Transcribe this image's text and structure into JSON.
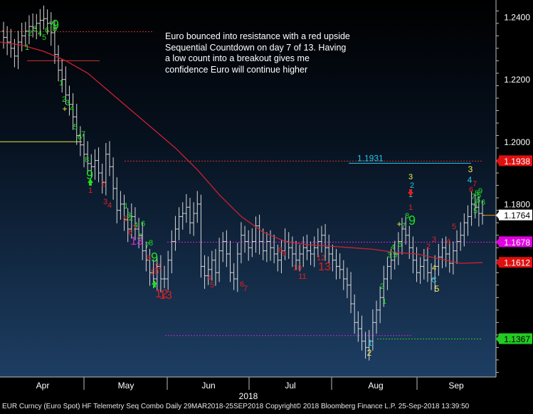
{
  "chart_data": {
    "type": "ohlc",
    "instrument": "EUR Curncy (Euro Spot)",
    "period": "Daily 29MAR2018-25SEP2018",
    "y_axis": {
      "ylim": [
        1.1245,
        1.2455
      ],
      "ticks": [
        1.24,
        1.22,
        1.2,
        1.18
      ]
    },
    "x_axis": {
      "months": [
        "Apr",
        "May",
        "Jun",
        "Jul",
        "Aug",
        "Sep"
      ],
      "year": "2018"
    },
    "close_series": [
      1.2335,
      1.232,
      1.23,
      1.2275,
      1.232,
      1.234,
      1.2355,
      1.237,
      1.2365,
      1.238,
      1.239,
      1.2395,
      1.238,
      1.235,
      1.228,
      1.223,
      1.22,
      1.215,
      1.212,
      1.208,
      1.202,
      1.199,
      1.196,
      1.193,
      1.192,
      1.194,
      1.19,
      1.187,
      1.196,
      1.192,
      1.185,
      1.178,
      1.18,
      1.175,
      1.172,
      1.176,
      1.172,
      1.17,
      1.165,
      1.162,
      1.158,
      1.156,
      1.16,
      1.156,
      1.156,
      1.162,
      1.168,
      1.172,
      1.176,
      1.177,
      1.179,
      1.174,
      1.177,
      1.18,
      1.16,
      1.157,
      1.159,
      1.162,
      1.158,
      1.165,
      1.168,
      1.164,
      1.158,
      1.156,
      1.164,
      1.17,
      1.168,
      1.166,
      1.168,
      1.173,
      1.168,
      1.165,
      1.168,
      1.166,
      1.164,
      1.162,
      1.165,
      1.168,
      1.166,
      1.164,
      1.162,
      1.164,
      1.166,
      1.165,
      1.164,
      1.166,
      1.168,
      1.17,
      1.166,
      1.164,
      1.162,
      1.16,
      1.159,
      1.156,
      1.154,
      1.148,
      1.142,
      1.14,
      1.136,
      1.134,
      1.136,
      1.142,
      1.146,
      1.15,
      1.156,
      1.16,
      1.162,
      1.164,
      1.168,
      1.172,
      1.17,
      1.166,
      1.162,
      1.158,
      1.16,
      1.162,
      1.158,
      1.156,
      1.16,
      1.163,
      1.166,
      1.164,
      1.161,
      1.165,
      1.168,
      1.17,
      1.174,
      1.176,
      1.18,
      1.179,
      1.177,
      1.1764
    ],
    "moving_average": [
      1.232,
      1.231,
      1.229,
      1.226,
      1.222,
      1.216,
      1.21,
      1.204,
      1.198,
      1.191,
      1.183,
      1.176,
      1.171,
      1.168,
      1.167,
      1.1665,
      1.166,
      1.1655,
      1.1645,
      1.164,
      1.1625,
      1.161,
      1.1612
    ],
    "price_labels": [
      {
        "text": "1.2400",
        "value": 1.24,
        "style": "tick"
      },
      {
        "text": "1.2200",
        "value": 1.22,
        "style": "tick"
      },
      {
        "text": "1.2000",
        "value": 1.2,
        "style": "tick"
      },
      {
        "text": "1.1938",
        "value": 1.1938,
        "style": "red"
      },
      {
        "text": "1.1800",
        "value": 1.18,
        "style": "tick"
      },
      {
        "text": "1.1764",
        "value": 1.1764,
        "style": "white"
      },
      {
        "text": "1.1678",
        "value": 1.1678,
        "style": "magenta"
      },
      {
        "text": "1.1612",
        "value": 1.1612,
        "style": "red"
      },
      {
        "text": "1.1367",
        "value": 1.1367,
        "style": "green"
      }
    ],
    "level_label": {
      "text": "1.1931",
      "value": 1.1931,
      "color": "#21c7e6"
    },
    "annotation": "Euro bounced into resistance with a red upside Sequential Countdown on day 7 of 13.  Having a low count into a breakout gives me confidence Euro will continue higher",
    "setup_counts": [
      "2",
      "3",
      "4",
      "5",
      "6",
      "7",
      "8",
      "9",
      "1",
      "1",
      "2",
      "3",
      "4",
      "5",
      "6",
      "7",
      "8",
      "9",
      "1",
      "2",
      "3",
      "4",
      "5",
      "6",
      "7",
      "8",
      "9",
      "1",
      "2",
      "3",
      "4",
      "5",
      "6",
      "7",
      "8",
      "9",
      "4",
      "5",
      "6",
      "7",
      "8",
      "9",
      "1",
      "2",
      "3",
      "4",
      "C",
      "5",
      "1",
      "2",
      "3",
      "4",
      "5",
      "6",
      "7",
      "8",
      "9",
      "A",
      "1",
      "2",
      "3",
      "B",
      "C",
      "3",
      "1",
      "2",
      "3",
      "4"
    ],
    "countdown_counts": [
      "1",
      "2",
      "3",
      "4",
      "5",
      "6",
      "7",
      "8",
      "10",
      "11",
      "12",
      "13",
      "4",
      "5",
      "6",
      "7",
      "8",
      "9",
      "10",
      "11",
      "12",
      "13",
      "2",
      "3",
      "4",
      "5",
      "6",
      "7",
      "1"
    ],
    "colors": {
      "up_setup": "#22dd22",
      "down_countdown": "#e02020",
      "aggressive": "#e020e0",
      "price_bars": "#d8d8d8",
      "moving_average": "#d02030",
      "deferred": "#ffee44",
      "cyan": "#21c7e6"
    }
  },
  "footer": "EUR Curncy (Euro Spot) HF Telemetry Seq Combo  Daily 29MAR2018-25SEP2018 Copyright© 2018 Bloomberg Finance L.P. 25-Sep-2018 13:39:50"
}
